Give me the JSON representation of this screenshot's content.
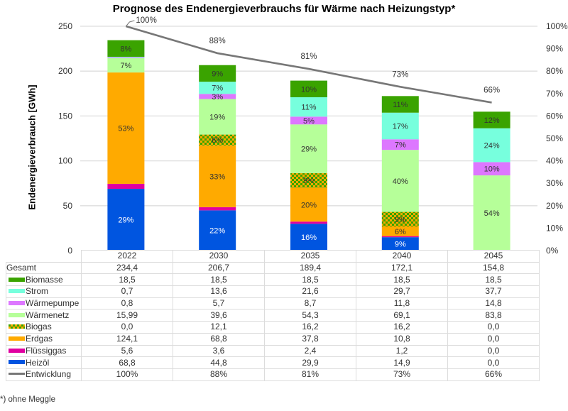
{
  "chart_data": {
    "type": "bar",
    "stacked": true,
    "title": "Prognose des Endenergieverbrauchs für Wärme nach Heizungstyp*",
    "ylabel": "Endenergieverbrauch [GWh]",
    "ylim": [
      0,
      250
    ],
    "yticks": [
      "0",
      "50",
      "100",
      "150",
      "200",
      "250"
    ],
    "y2lim": [
      0,
      100
    ],
    "y2ticks": [
      "0%",
      "10%",
      "20%",
      "30%",
      "40%",
      "50%",
      "60%",
      "70%",
      "80%",
      "90%",
      "100%"
    ],
    "grid": true,
    "categories": [
      "2022",
      "2030",
      "2035",
      "2040",
      "2045"
    ],
    "series": [
      {
        "name": "Heizöl",
        "color": "#0055e0",
        "values": [
          68.8,
          44.8,
          29.9,
          14.9,
          0.0
        ],
        "labels": [
          "29%",
          "22%",
          "16%",
          "9%",
          ""
        ],
        "label_color": "#ffffff"
      },
      {
        "name": "Flüssiggas",
        "color": "#e000a0",
        "values": [
          5.6,
          3.6,
          2.4,
          1.2,
          0.0
        ],
        "labels": [
          "",
          "",
          "",
          "",
          ""
        ],
        "label_color": "#333333"
      },
      {
        "name": "Erdgas",
        "color": "#ffaa00",
        "values": [
          124.1,
          68.8,
          37.8,
          10.8,
          0.0
        ],
        "labels": [
          "53%",
          "33%",
          "20%",
          "6%",
          ""
        ],
        "label_color": "#333333"
      },
      {
        "name": "Biogas",
        "color": "#3aa300",
        "color2": "#ffaa00",
        "pattern": "checker",
        "values": [
          0.0,
          12.1,
          16.2,
          16.2,
          0.0
        ],
        "labels": [
          "",
          "6%",
          "9%",
          "9%",
          ""
        ],
        "label_color": "#333333"
      },
      {
        "name": "Wärmenetz",
        "color": "#b6ff99",
        "values": [
          15.99,
          39.6,
          54.3,
          69.1,
          83.8
        ],
        "labels": [
          "7%",
          "19%",
          "29%",
          "40%",
          "54%"
        ],
        "label_color": "#333333"
      },
      {
        "name": "Wärmepumpe",
        "color": "#dd77ff",
        "values": [
          0.8,
          5.7,
          8.7,
          11.8,
          14.8
        ],
        "labels": [
          "",
          "3%",
          "5%",
          "7%",
          "10%"
        ],
        "label_color": "#333333"
      },
      {
        "name": "Strom",
        "color": "#77ffdd",
        "values": [
          0.7,
          13.6,
          21.6,
          29.7,
          37.7
        ],
        "labels": [
          "",
          "7%",
          "11%",
          "17%",
          "24%"
        ],
        "label_color": "#333333"
      },
      {
        "name": "Biomasse",
        "color": "#3aa300",
        "values": [
          18.5,
          18.5,
          18.5,
          18.5,
          18.5
        ],
        "labels": [
          "8%",
          "9%",
          "10%",
          "11%",
          "12%"
        ],
        "label_color": "#333333"
      }
    ],
    "line": {
      "name": "Entwicklung",
      "color": "#777777",
      "axis": "secondary",
      "values": [
        100,
        88,
        81,
        73,
        66
      ],
      "labels": [
        "100%",
        "88%",
        "81%",
        "73%",
        "66%"
      ]
    },
    "totals": [
      234.4,
      206.7,
      189.4,
      172.1,
      154.8
    ]
  },
  "table": {
    "years": [
      "2022",
      "2030",
      "2035",
      "2040",
      "2045"
    ],
    "rows": [
      {
        "label": "Gesamt",
        "swatch": null,
        "values": [
          "234,4",
          "206,7",
          "189,4",
          "172,1",
          "154,8"
        ]
      },
      {
        "label": "Biomasse",
        "swatch": "biomasse",
        "values": [
          "18,5",
          "18,5",
          "18,5",
          "18,5",
          "18,5"
        ]
      },
      {
        "label": "Strom",
        "swatch": "strom",
        "values": [
          "0,7",
          "13,6",
          "21,6",
          "29,7",
          "37,7"
        ]
      },
      {
        "label": "Wärmepumpe",
        "swatch": "waermepumpe",
        "values": [
          "0,8",
          "5,7",
          "8,7",
          "11,8",
          "14,8"
        ]
      },
      {
        "label": "Wärmenetz",
        "swatch": "waermenetz",
        "values": [
          "15,99",
          "39,6",
          "54,3",
          "69,1",
          "83,8"
        ]
      },
      {
        "label": "Biogas",
        "swatch": "biogas",
        "values": [
          "0,0",
          "12,1",
          "16,2",
          "16,2",
          "0,0"
        ]
      },
      {
        "label": "Erdgas",
        "swatch": "erdgas",
        "values": [
          "124,1",
          "68,8",
          "37,8",
          "10,8",
          "0,0"
        ]
      },
      {
        "label": "Flüssiggas",
        "swatch": "fluessiggas",
        "values": [
          "5,6",
          "3,6",
          "2,4",
          "1,2",
          "0,0"
        ]
      },
      {
        "label": "Heizöl",
        "swatch": "heizoel",
        "values": [
          "68,8",
          "44,8",
          "29,9",
          "14,9",
          "0,0"
        ]
      },
      {
        "label": "Entwicklung",
        "swatch": "entwicklung",
        "values": [
          "100%",
          "88%",
          "81%",
          "73%",
          "66%"
        ]
      }
    ]
  },
  "footnote": "*) ohne Meggle"
}
